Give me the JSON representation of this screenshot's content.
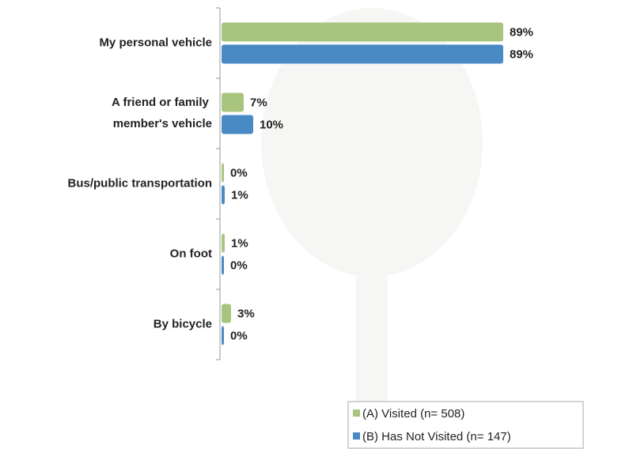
{
  "chart_data": {
    "type": "hbar",
    "categories": [
      "My personal vehicle",
      "A friend or family member's vehicle",
      "Bus/public transportation",
      "On foot",
      "By bicycle"
    ],
    "series": [
      {
        "name": "(A) Visited (n= 508)",
        "color": "#a9c47f",
        "values": [
          89,
          7,
          0,
          1,
          3
        ],
        "value_labels": [
          "89%",
          "7%",
          "0%",
          "1%",
          "3%"
        ]
      },
      {
        "name": "(B) Has Not Visited (n= 147)",
        "color": "#4a8ac4",
        "values": [
          89,
          10,
          1,
          0,
          0
        ],
        "value_labels": [
          "89%",
          "10%",
          "1%",
          "0%",
          "0%"
        ]
      }
    ],
    "legend": "bottom-right"
  }
}
